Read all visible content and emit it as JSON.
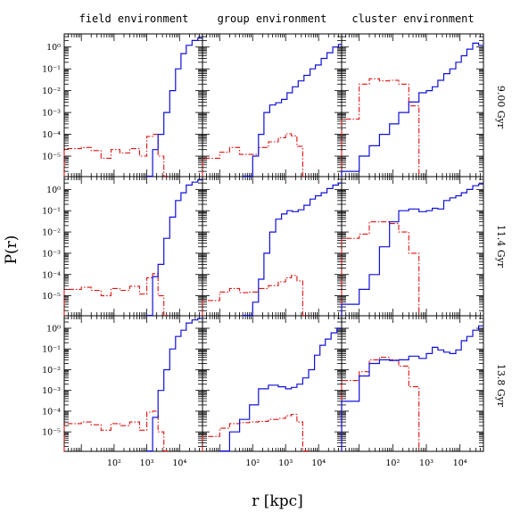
{
  "figure": {
    "ylabel": "P(r)",
    "xlabel": "r [kpc]",
    "columns": [
      "field environment",
      "group environment",
      "cluster environment"
    ],
    "rows": [
      "9.00 Gyr",
      "11.4 Gyr",
      "13.8 Gyr"
    ],
    "ytick_labels": [
      "10⁰",
      "10⁻¹",
      "10⁻²",
      "10⁻³",
      "10⁻⁴",
      "10⁻⁵"
    ],
    "xtick_labels": [
      "10²",
      "10³",
      "10⁴"
    ],
    "series_colors": {
      "blue": "#1010d8",
      "red": "#e01010"
    }
  },
  "chart_data": {
    "type": "line",
    "layout": "3x3 grid of step histograms",
    "x_scale": "log",
    "y_scale": "log",
    "xlim": [
      3,
      50000
    ],
    "ylim": [
      1.15e-06,
      4
    ],
    "xticks": [
      100,
      1000,
      10000
    ],
    "yticks": [
      1,
      0.1,
      0.01,
      0.001,
      0.0001,
      1e-05
    ],
    "panels": [
      {
        "column": "field environment",
        "row": "9.00 Gyr",
        "blue": {
          "edges": [
            1000,
            1500,
            2200,
            3300,
            5000,
            7500,
            11000,
            16000,
            24000,
            36000,
            50000
          ],
          "values": [
            1.2e-06,
            2e-05,
            0.0001,
            0.001,
            0.01,
            0.1,
            0.5,
            1.2,
            2.0,
            2.6
          ]
        },
        "red": {
          "edges": [
            3,
            10,
            20,
            40,
            80,
            150,
            300,
            600,
            1000,
            1500,
            2200,
            3300,
            5000
          ],
          "values": [
            2.2e-05,
            2.5e-05,
            1.8e-05,
            8e-06,
            2e-05,
            1.4e-05,
            2.2e-05,
            1e-05,
            8e-05,
            0.0001,
            1e-05,
            1.2e-06
          ]
        }
      },
      {
        "column": "group environment",
        "row": "9.00 Gyr",
        "blue": {
          "edges": [
            50,
            100,
            150,
            220,
            330,
            500,
            750,
            1100,
            1600,
            2400,
            3600,
            5500,
            8000,
            12000,
            18000,
            27000,
            40000,
            50000
          ],
          "values": [
            1.2e-06,
            1e-05,
            0.0001,
            0.001,
            0.0022,
            0.0028,
            0.004,
            0.008,
            0.015,
            0.028,
            0.05,
            0.1,
            0.15,
            0.3,
            0.55,
            1.0,
            1.3
          ]
        },
        "red": {
          "edges": [
            3,
            10,
            20,
            40,
            80,
            150,
            300,
            600,
            1000,
            1500,
            2200,
            3300,
            5000
          ],
          "values": [
            8e-06,
            1.5e-05,
            2.5e-05,
            1.2e-05,
            1.2e-05,
            2.5e-05,
            4.5e-05,
            7e-05,
            0.000105,
            8.5e-05,
            2.8e-05,
            1.2e-06
          ]
        }
      },
      {
        "column": "cluster environment",
        "row": "9.00 Gyr",
        "blue": {
          "edges": [
            3,
            10,
            20,
            40,
            80,
            150,
            300,
            600,
            1000,
            1500,
            2200,
            3300,
            5000,
            7500,
            11000,
            16000,
            24000,
            36000,
            50000
          ],
          "values": [
            2e-06,
            1e-05,
            3e-05,
            0.0001,
            0.0003,
            0.001,
            0.003,
            0.008,
            0.01,
            0.015,
            0.03,
            0.06,
            0.1,
            0.2,
            0.4,
            0.8,
            1.5,
            1.2
          ]
        },
        "red": {
          "edges": [
            3,
            10,
            20,
            40,
            80,
            150,
            300,
            600
          ],
          "values": [
            0.0005,
            0.02,
            0.035,
            0.028,
            0.03,
            0.02,
            0.002,
            1.2e-06
          ]
        }
      },
      {
        "column": "field environment",
        "row": "11.4 Gyr",
        "blue": {
          "edges": [
            1000,
            1500,
            2200,
            3300,
            5000,
            7500,
            11000,
            16000,
            24000,
            36000,
            50000
          ],
          "values": [
            1.2e-06,
            8e-05,
            0.0003,
            0.005,
            0.05,
            0.3,
            0.7,
            1.6,
            2.2,
            2.8
          ]
        },
        "red": {
          "edges": [
            3,
            10,
            20,
            40,
            80,
            150,
            300,
            600,
            1000,
            1500,
            2200,
            3300,
            5000
          ],
          "values": [
            2e-05,
            2.5e-05,
            1.8e-05,
            1e-05,
            2.2e-05,
            1.8e-05,
            2.8e-05,
            1.2e-05,
            7e-05,
            0.00011,
            1e-05,
            1.2e-06
          ]
        }
      },
      {
        "column": "group environment",
        "row": "11.4 Gyr",
        "blue": {
          "edges": [
            50,
            100,
            150,
            220,
            330,
            500,
            750,
            1100,
            1600,
            2400,
            3600,
            5500,
            8000,
            12000,
            18000,
            27000,
            40000,
            50000
          ],
          "values": [
            1.2e-06,
            5e-06,
            6e-05,
            0.001,
            0.01,
            0.04,
            0.07,
            0.1,
            0.09,
            0.11,
            0.18,
            0.35,
            0.5,
            0.7,
            1.1,
            1.6,
            2.0
          ]
        },
        "red": {
          "edges": [
            3,
            10,
            20,
            40,
            80,
            150,
            300,
            600,
            1000,
            1500,
            2200,
            3300,
            5000
          ],
          "values": [
            6e-06,
            1.5e-05,
            2.2e-05,
            1.4e-05,
            1.5e-05,
            2.2e-05,
            3e-05,
            4.5e-05,
            7e-05,
            9e-05,
            5e-05,
            1.2e-06
          ]
        }
      },
      {
        "column": "cluster environment",
        "row": "11.4 Gyr",
        "blue": {
          "edges": [
            3,
            10,
            20,
            40,
            80,
            150,
            300,
            600,
            1000,
            1500,
            2200,
            3300,
            5000,
            7500,
            11000,
            16000,
            24000,
            36000,
            50000
          ],
          "values": [
            4e-06,
            2e-05,
            0.0001,
            0.002,
            0.03,
            0.1,
            0.12,
            0.09,
            0.1,
            0.13,
            0.12,
            0.3,
            0.4,
            0.5,
            0.7,
            1.0,
            1.5,
            1.8
          ]
        },
        "red": {
          "edges": [
            3,
            10,
            20,
            40,
            80,
            150,
            300,
            600
          ],
          "values": [
            0.005,
            0.008,
            0.03,
            0.03,
            0.025,
            0.01,
            0.001,
            1.2e-06
          ]
        }
      },
      {
        "column": "field environment",
        "row": "13.8 Gyr",
        "blue": {
          "edges": [
            1000,
            1500,
            2200,
            3300,
            5000,
            7500,
            11000,
            16000,
            24000,
            36000,
            50000
          ],
          "values": [
            1.2e-06,
            5e-05,
            0.001,
            0.01,
            0.1,
            0.4,
            0.8,
            1.8,
            2.5,
            3.0
          ]
        },
        "red": {
          "edges": [
            3,
            10,
            20,
            40,
            80,
            150,
            300,
            600,
            1000,
            1500,
            2200,
            3300,
            5000
          ],
          "values": [
            2.5e-05,
            3e-05,
            2.2e-05,
            1.2e-05,
            2.5e-05,
            2e-05,
            3e-05,
            1.2e-05,
            9e-05,
            0.0001,
            1e-05,
            1.2e-06
          ]
        }
      },
      {
        "column": "group environment",
        "row": "13.8 Gyr",
        "blue": {
          "edges": [
            10,
            20,
            40,
            80,
            150,
            300,
            600,
            1000,
            1500,
            2200,
            3300,
            5000,
            7500,
            11000,
            16000,
            24000,
            36000,
            50000
          ],
          "values": [
            1.2e-06,
            1e-05,
            4e-05,
            0.0002,
            0.0012,
            0.0018,
            0.0015,
            0.0012,
            0.0014,
            0.002,
            0.004,
            0.01,
            0.05,
            0.15,
            0.3,
            0.6,
            1.0
          ]
        },
        "red": {
          "edges": [
            3,
            10,
            20,
            40,
            80,
            150,
            300,
            600,
            1000,
            1500,
            2200,
            3300,
            5000
          ],
          "values": [
            6e-06,
            1.5e-05,
            2.5e-05,
            2.8e-05,
            3e-05,
            3.2e-05,
            4e-05,
            4.5e-05,
            6e-05,
            7e-05,
            3e-05,
            1.2e-06
          ]
        }
      },
      {
        "column": "cluster environment",
        "row": "13.8 Gyr",
        "blue": {
          "edges": [
            3,
            10,
            20,
            40,
            80,
            150,
            300,
            600,
            1000,
            1500,
            2200,
            3300,
            5000,
            7500,
            11000,
            16000,
            24000,
            36000,
            50000
          ],
          "values": [
            0.0003,
            0.005,
            0.02,
            0.03,
            0.028,
            0.03,
            0.045,
            0.035,
            0.06,
            0.12,
            0.09,
            0.07,
            0.06,
            0.09,
            0.25,
            0.4,
            0.8,
            1.3
          ]
        },
        "red": {
          "edges": [
            3,
            10,
            20,
            40,
            80,
            150,
            300,
            600
          ],
          "values": [
            0.003,
            0.008,
            0.03,
            0.04,
            0.03,
            0.015,
            0.0015,
            1.2e-06
          ]
        }
      }
    ]
  }
}
